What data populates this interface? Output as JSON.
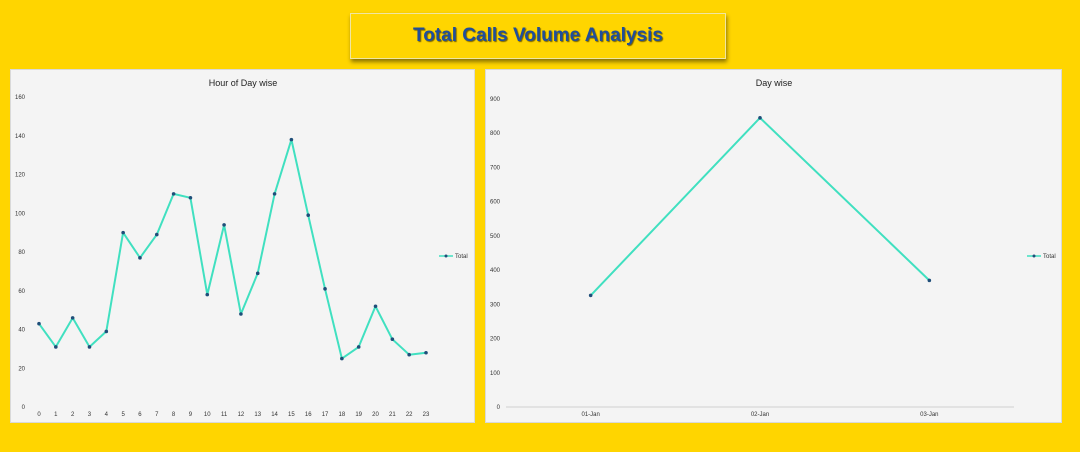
{
  "header": {
    "title": "Total Calls Volume Analysis"
  },
  "colors": {
    "background": "#FFD500",
    "title": "#1F4E9C",
    "line": "#40E0C0",
    "marker": "#1F4E79",
    "panel": "#F4F4F4"
  },
  "chart_data": [
    {
      "type": "line",
      "title": "Hour of Day wise",
      "categories": [
        "0",
        "1",
        "2",
        "3",
        "4",
        "5",
        "6",
        "7",
        "8",
        "9",
        "10",
        "11",
        "12",
        "13",
        "14",
        "15",
        "16",
        "17",
        "18",
        "19",
        "20",
        "21",
        "22",
        "23"
      ],
      "series": [
        {
          "name": "Total",
          "values": [
            43,
            31,
            46,
            31,
            39,
            90,
            77,
            89,
            110,
            108,
            58,
            94,
            48,
            69,
            110,
            138,
            99,
            61,
            25,
            31,
            52,
            35,
            27,
            28
          ]
        }
      ],
      "ylim": [
        0,
        160
      ],
      "yticks": [
        "0",
        "20",
        "40",
        "60",
        "80",
        "100",
        "120",
        "140",
        "160"
      ],
      "legend": "right"
    },
    {
      "type": "line",
      "title": "Day wise",
      "categories": [
        "01-Jan",
        "02-Jan",
        "03-Jan"
      ],
      "series": [
        {
          "name": "Total",
          "values": [
            326,
            845,
            370
          ]
        }
      ],
      "ylim": [
        0,
        900
      ],
      "yticks": [
        "0",
        "100",
        "200",
        "300",
        "400",
        "500",
        "600",
        "700",
        "800",
        "900"
      ],
      "legend": "right"
    }
  ]
}
